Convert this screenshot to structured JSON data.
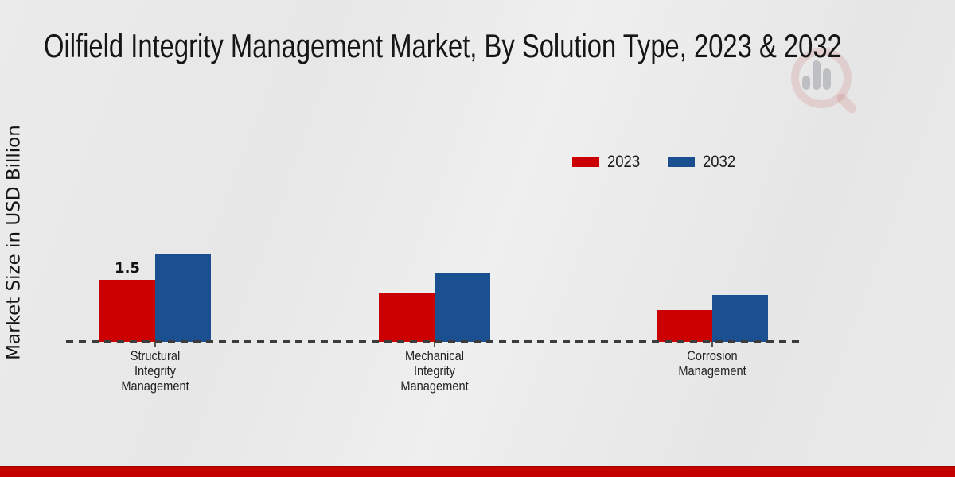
{
  "title": "Oilfield Integrity Management Market, By Solution Type, 2023 & 2032",
  "watermark_icon": "magnifier-bar-chart-logo",
  "colors": {
    "series_2023": "#cc0000",
    "series_2032": "#1a4f91",
    "footer_accent": "#c40000",
    "background": "#e9e9e9"
  },
  "chart_data": {
    "type": "bar",
    "title": "Oilfield Integrity Management Market, By Solution Type, 2023 & 2032",
    "xlabel": "",
    "ylabel": "Market Size in USD Billion",
    "categories": [
      "Structural Integrity Management",
      "Mechanical Integrity Management",
      "Corrosion Management"
    ],
    "categories_display": [
      "Structural\nIntegrity\nManagement",
      "Mechanical\nIntegrity\nManagement",
      "Corrosion\nManagement"
    ],
    "series": [
      {
        "name": "2023",
        "color": "#cc0000",
        "values": [
          1.5,
          1.17,
          0.77
        ]
      },
      {
        "name": "2032",
        "color": "#1a4f91",
        "values": [
          2.13,
          1.65,
          1.13
        ]
      }
    ],
    "annotations": [
      {
        "series": "2023",
        "category_index": 0,
        "text": "1.5"
      }
    ],
    "ylim": [
      0,
      2.5
    ],
    "grid": false,
    "y_axis_ticks_visible": false,
    "legend_position": "top-right",
    "baseline_style": "dashed"
  }
}
